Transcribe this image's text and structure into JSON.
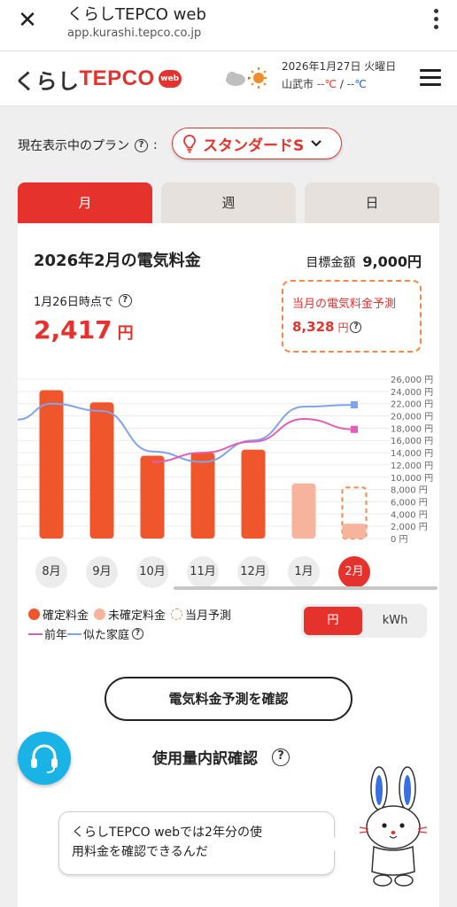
{
  "browser": {
    "title": "くらしTEPCO web",
    "url": "app.kurashi.tepco.co.jp"
  },
  "header": {
    "logo_kurashi": "くらし",
    "logo_tepco": "TEPCO",
    "logo_web": "web",
    "weather_date": "2026年1月27日 火曜日",
    "weather_city": "山武市",
    "temp_high": "--℃",
    "temp_low": "--℃",
    "temp_sep": "/"
  },
  "plan": {
    "label": "現在表示中のプラン",
    "colon": ":",
    "value": "スタンダードS"
  },
  "tabs": [
    {
      "label": "月",
      "active": true
    },
    {
      "label": "週",
      "active": false
    },
    {
      "label": "日",
      "active": false
    }
  ],
  "summary": {
    "title": "2026年2月の電気料金",
    "target_label": "目標金額",
    "target_value": "9,000円",
    "asof": "1月26日時点で",
    "amount": "2,417",
    "amount_unit": "円",
    "forecast_label": "当月の電気料金予測",
    "forecast_value": "8,328",
    "forecast_unit": "円"
  },
  "chart_data": {
    "type": "bar",
    "categories": [
      "8月",
      "9月",
      "10月",
      "11月",
      "12月",
      "1月",
      "2月"
    ],
    "series": [
      {
        "name": "確定料金",
        "values": [
          24200,
          22200,
          13500,
          14000,
          14500,
          null,
          null
        ],
        "color": "#f0562b"
      },
      {
        "name": "未確定料金",
        "values": [
          null,
          null,
          null,
          null,
          null,
          9000,
          2417
        ],
        "color": "#f7b39c"
      },
      {
        "name": "当月予測",
        "values": [
          null,
          null,
          null,
          null,
          null,
          null,
          8328
        ],
        "color": "#f08a4b"
      },
      {
        "name": "前年",
        "type": "line",
        "values": [
          null,
          null,
          12500,
          14000,
          15800,
          19500,
          17800
        ],
        "color": "#e55bb8"
      },
      {
        "name": "似た家庭",
        "type": "line",
        "values": [
          22000,
          20800,
          14200,
          12500,
          16000,
          21500,
          21800
        ],
        "color": "#7fa3ec"
      }
    ],
    "yticks": [
      "26,000 円",
      "24,000 円",
      "22,000 円",
      "20,000 円",
      "18,000 円",
      "16,000 円",
      "14,000 円",
      "12,000 円",
      "10,000 円",
      "8,000 円",
      "6,000 円",
      "4,000 円",
      "2,000 円",
      "0 円"
    ],
    "ylim": [
      0,
      26000
    ],
    "grid": true
  },
  "legend": {
    "confirmed": "確定料金",
    "unconfirmed": "未確定料金",
    "forecast": "当月予測",
    "last_year": "前年",
    "similar": "似た家庭"
  },
  "unit_toggle": {
    "yen": "円",
    "kwh": "kWh"
  },
  "actions": {
    "confirm_forecast": "電気料金予測を確認",
    "usage_breakdown": "使用量内訳確認"
  },
  "bubble": {
    "text_line1": "くらしTEPCO webでは2年分の使",
    "text_line2": "用料金を確認できるんだ"
  }
}
